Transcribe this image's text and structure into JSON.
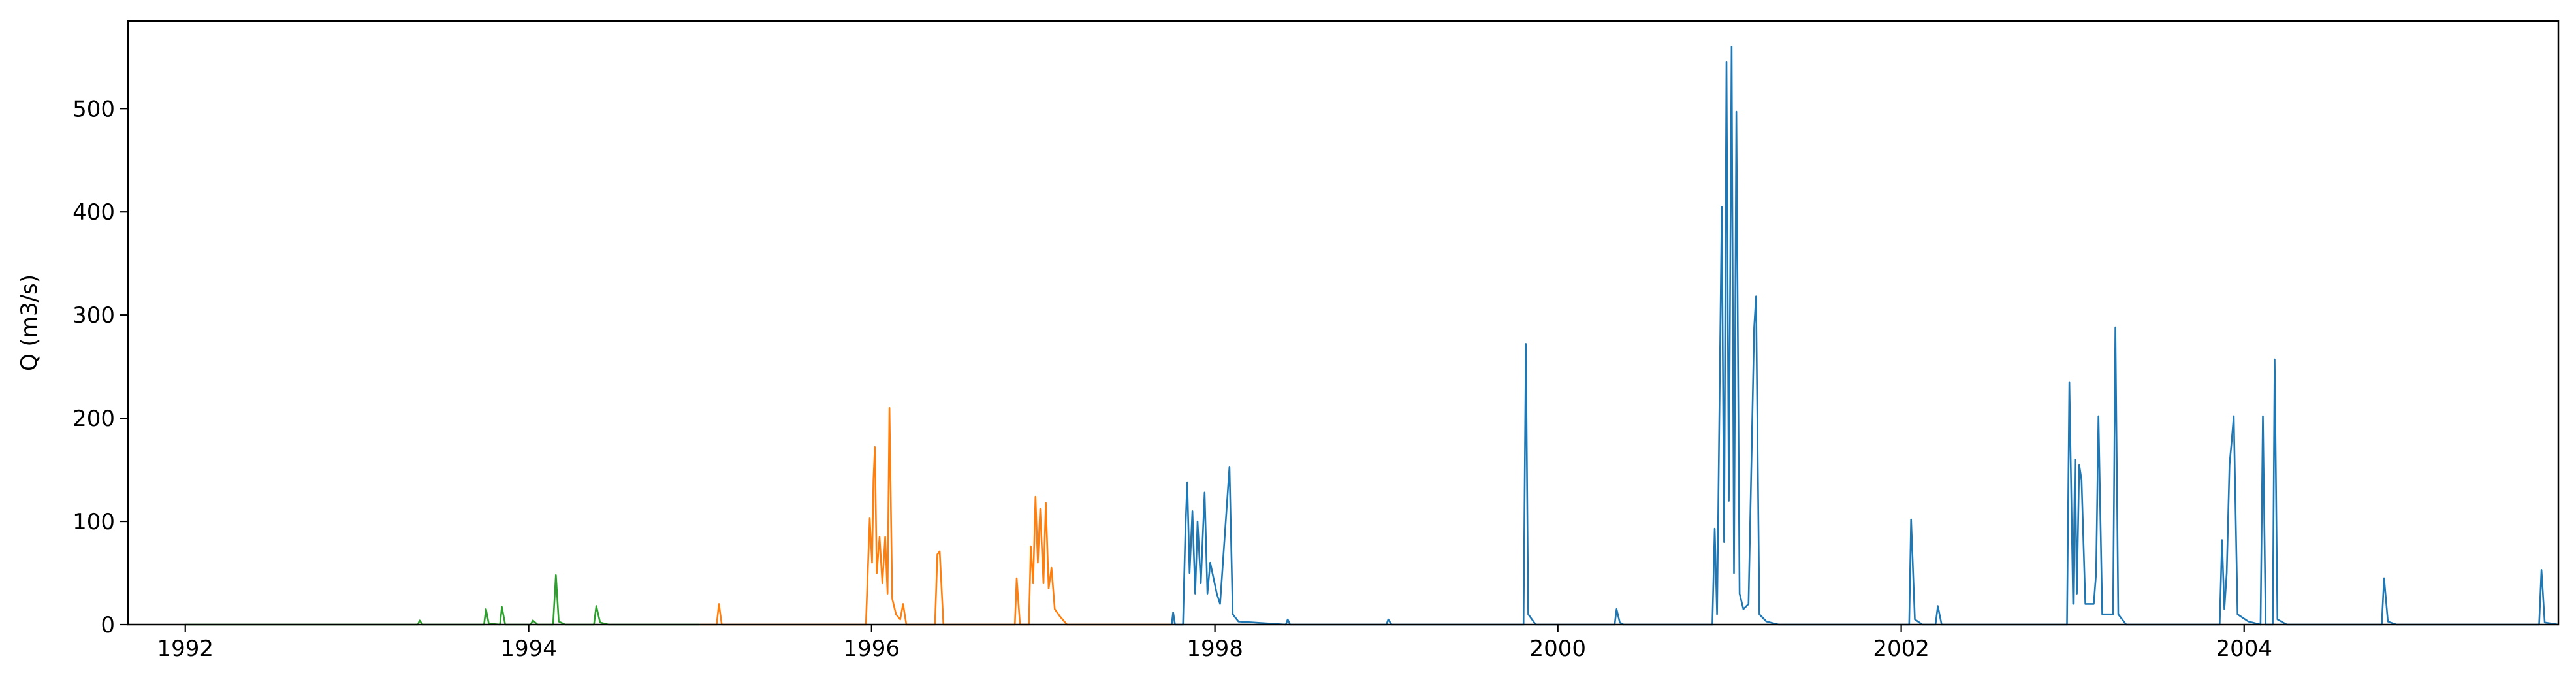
{
  "chart_data": {
    "type": "line",
    "title": "",
    "xlabel": "",
    "ylabel": "Q (m3/s)",
    "xlim": [
      "1991-09-01",
      "2005-10-31"
    ],
    "ylim": [
      0,
      585
    ],
    "xticks": [
      "1992",
      "1994",
      "1996",
      "1998",
      "2000",
      "2002",
      "2004"
    ],
    "yticks": [
      0,
      100,
      200,
      300,
      400,
      500
    ],
    "grid": false,
    "legend": "none",
    "series": [
      {
        "color": "#2ca02c",
        "points": [
          [
            "1992-01-01",
            0
          ],
          [
            "1993-05-10",
            0
          ],
          [
            "1993-05-14",
            4
          ],
          [
            "1993-05-20",
            0
          ],
          [
            "1993-09-28",
            0
          ],
          [
            "1993-10-02",
            15
          ],
          [
            "1993-10-08",
            1
          ],
          [
            "1993-11-01",
            0
          ],
          [
            "1993-11-05",
            17
          ],
          [
            "1993-11-12",
            0
          ],
          [
            "1994-01-05",
            0
          ],
          [
            "1994-01-10",
            4
          ],
          [
            "1994-01-20",
            0
          ],
          [
            "1994-02-22",
            0
          ],
          [
            "1994-02-28",
            48
          ],
          [
            "1994-03-06",
            3
          ],
          [
            "1994-03-20",
            0
          ],
          [
            "1994-05-20",
            0
          ],
          [
            "1994-05-25",
            18
          ],
          [
            "1994-06-02",
            2
          ],
          [
            "1994-06-20",
            0
          ],
          [
            "1994-12-31",
            0
          ]
        ]
      },
      {
        "color": "#ff7f0e",
        "points": [
          [
            "1995-01-01",
            0
          ],
          [
            "1995-02-05",
            0
          ],
          [
            "1995-02-10",
            20
          ],
          [
            "1995-02-16",
            0
          ],
          [
            "1995-12-20",
            0
          ],
          [
            "1995-12-28",
            103
          ],
          [
            "1996-01-02",
            60
          ],
          [
            "1996-01-05",
            140
          ],
          [
            "1996-01-08",
            172
          ],
          [
            "1996-01-12",
            50
          ],
          [
            "1996-01-18",
            85
          ],
          [
            "1996-01-24",
            40
          ],
          [
            "1996-01-30",
            85
          ],
          [
            "1996-02-04",
            30
          ],
          [
            "1996-02-08",
            210
          ],
          [
            "1996-02-14",
            25
          ],
          [
            "1996-02-22",
            10
          ],
          [
            "1996-03-02",
            5
          ],
          [
            "1996-03-08",
            20
          ],
          [
            "1996-03-15",
            0
          ],
          [
            "1996-05-15",
            0
          ],
          [
            "1996-05-20",
            68
          ],
          [
            "1996-05-25",
            71
          ],
          [
            "1996-06-02",
            0
          ],
          [
            "1996-11-01",
            0
          ],
          [
            "1996-11-05",
            45
          ],
          [
            "1996-11-12",
            0
          ],
          [
            "1996-12-01",
            0
          ],
          [
            "1996-12-05",
            76
          ],
          [
            "1996-12-10",
            40
          ],
          [
            "1996-12-15",
            124
          ],
          [
            "1996-12-20",
            60
          ],
          [
            "1996-12-25",
            112
          ],
          [
            "1997-01-01",
            40
          ],
          [
            "1997-01-06",
            118
          ],
          [
            "1997-01-12",
            35
          ],
          [
            "1997-01-18",
            55
          ],
          [
            "1997-01-25",
            15
          ],
          [
            "1997-02-05",
            8
          ],
          [
            "1997-02-20",
            0
          ],
          [
            "1997-09-30",
            0
          ]
        ]
      },
      {
        "color": "#1f77b4",
        "points": [
          [
            "1997-10-01",
            0
          ],
          [
            "1997-10-04",
            12
          ],
          [
            "1997-10-08",
            0
          ],
          [
            "1997-10-25",
            0
          ],
          [
            "1997-10-30",
            90
          ],
          [
            "1997-11-03",
            138
          ],
          [
            "1997-11-08",
            50
          ],
          [
            "1997-11-14",
            110
          ],
          [
            "1997-11-20",
            30
          ],
          [
            "1997-11-25",
            100
          ],
          [
            "1997-12-02",
            40
          ],
          [
            "1997-12-10",
            128
          ],
          [
            "1997-12-16",
            30
          ],
          [
            "1997-12-22",
            60
          ],
          [
            "1998-01-05",
            30
          ],
          [
            "1998-01-12",
            20
          ],
          [
            "1998-02-01",
            153
          ],
          [
            "1998-02-08",
            10
          ],
          [
            "1998-02-20",
            3
          ],
          [
            "1998-06-01",
            0
          ],
          [
            "1998-06-05",
            5
          ],
          [
            "1998-06-10",
            0
          ],
          [
            "1999-01-01",
            0
          ],
          [
            "1999-01-05",
            5
          ],
          [
            "1999-01-12",
            0
          ],
          [
            "1999-10-20",
            0
          ],
          [
            "1999-10-25",
            272
          ],
          [
            "1999-10-30",
            10
          ],
          [
            "1999-11-15",
            0
          ],
          [
            "2000-05-01",
            0
          ],
          [
            "2000-05-05",
            15
          ],
          [
            "2000-05-12",
            2
          ],
          [
            "2000-05-20",
            0
          ],
          [
            "2000-11-25",
            0
          ],
          [
            "2000-11-30",
            93
          ],
          [
            "2000-12-05",
            10
          ],
          [
            "2000-12-15",
            405
          ],
          [
            "2000-12-20",
            80
          ],
          [
            "2000-12-25",
            545
          ],
          [
            "2000-12-30",
            120
          ],
          [
            "2001-01-05",
            560
          ],
          [
            "2001-01-10",
            50
          ],
          [
            "2001-01-15",
            497
          ],
          [
            "2001-01-22",
            30
          ],
          [
            "2001-01-30",
            15
          ],
          [
            "2001-02-10",
            20
          ],
          [
            "2001-02-22",
            288
          ],
          [
            "2001-02-26",
            318
          ],
          [
            "2001-03-05",
            10
          ],
          [
            "2001-03-20",
            3
          ],
          [
            "2001-04-15",
            0
          ],
          [
            "2002-01-18",
            0
          ],
          [
            "2002-01-22",
            102
          ],
          [
            "2002-01-30",
            5
          ],
          [
            "2002-02-15",
            0
          ],
          [
            "2002-03-15",
            0
          ],
          [
            "2002-03-20",
            18
          ],
          [
            "2002-03-28",
            0
          ],
          [
            "2002-12-20",
            0
          ],
          [
            "2002-12-25",
            235
          ],
          [
            "2003-01-02",
            20
          ],
          [
            "2003-01-06",
            160
          ],
          [
            "2003-01-10",
            30
          ],
          [
            "2003-01-15",
            155
          ],
          [
            "2003-01-20",
            140
          ],
          [
            "2003-01-28",
            20
          ],
          [
            "2003-02-15",
            20
          ],
          [
            "2003-02-20",
            50
          ],
          [
            "2003-02-25",
            202
          ],
          [
            "2003-03-05",
            10
          ],
          [
            "2003-03-28",
            10
          ],
          [
            "2003-04-02",
            288
          ],
          [
            "2003-04-08",
            10
          ],
          [
            "2003-04-25",
            0
          ],
          [
            "2003-11-10",
            0
          ],
          [
            "2003-11-15",
            82
          ],
          [
            "2003-11-20",
            15
          ],
          [
            "2003-11-25",
            50
          ],
          [
            "2003-12-01",
            155
          ],
          [
            "2003-12-05",
            175
          ],
          [
            "2003-12-10",
            202
          ],
          [
            "2003-12-18",
            10
          ],
          [
            "2004-01-10",
            3
          ],
          [
            "2004-02-05",
            0
          ],
          [
            "2004-02-10",
            202
          ],
          [
            "2004-02-16",
            0
          ],
          [
            "2004-03-02",
            0
          ],
          [
            "2004-03-06",
            257
          ],
          [
            "2004-03-12",
            5
          ],
          [
            "2004-04-01",
            0
          ],
          [
            "2004-10-20",
            0
          ],
          [
            "2004-10-25",
            45
          ],
          [
            "2004-11-02",
            3
          ],
          [
            "2004-11-20",
            0
          ],
          [
            "2005-09-20",
            0
          ],
          [
            "2005-09-25",
            53
          ],
          [
            "2005-10-02",
            2
          ],
          [
            "2005-10-31",
            0
          ]
        ]
      }
    ]
  }
}
